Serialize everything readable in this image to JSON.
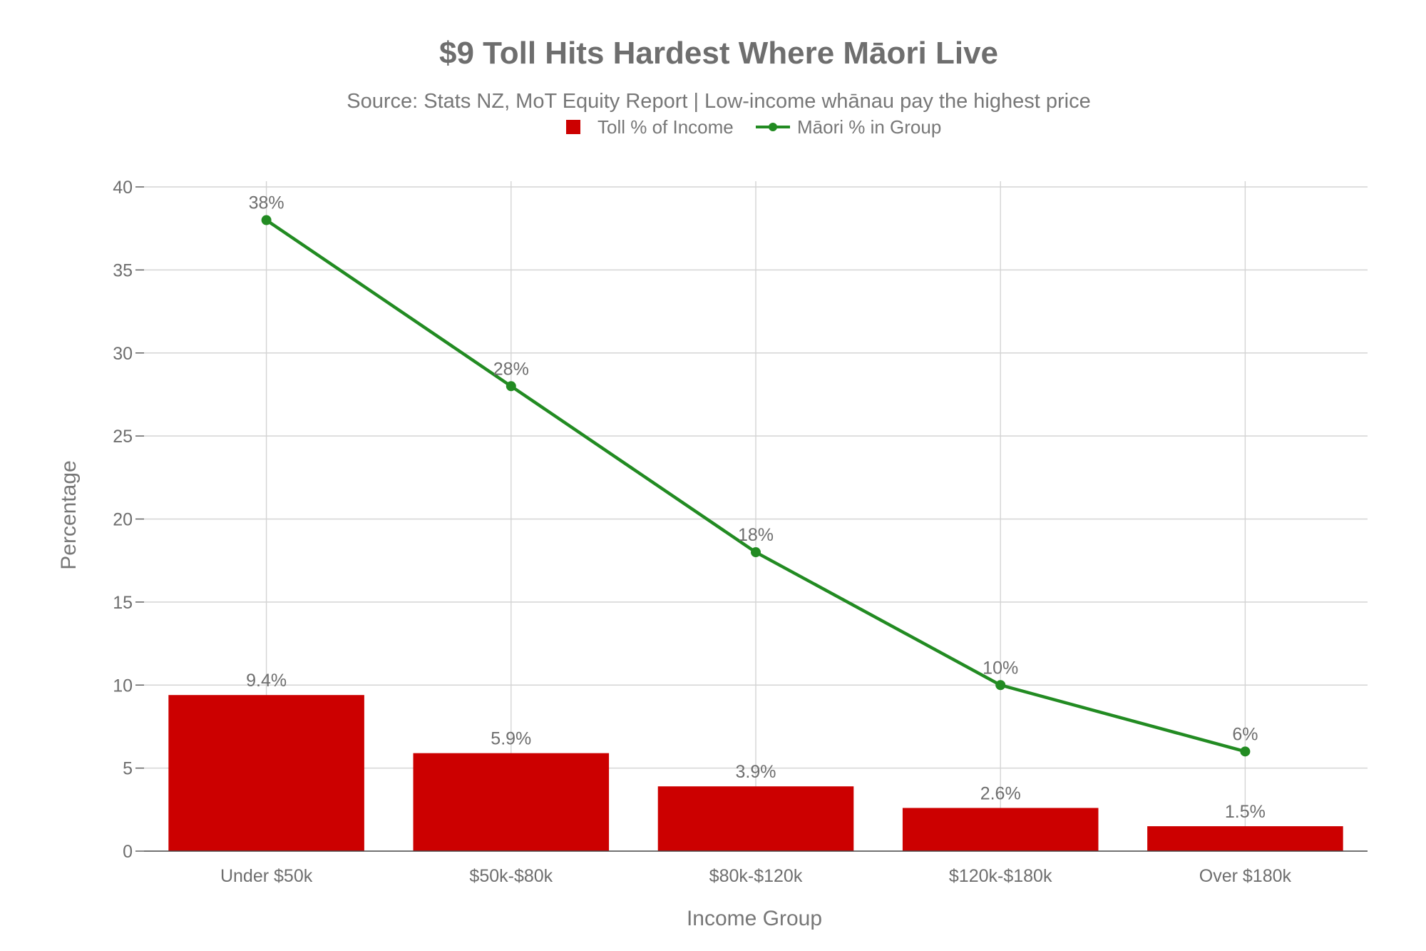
{
  "chart_data": {
    "type": "bar",
    "title": "$9 Toll Hits Hardest Where Māori Live",
    "subtitle": "Source: Stats NZ, MoT Equity Report | Low-income whānau pay the highest price",
    "xlabel": "Income Group",
    "ylabel": "Percentage",
    "ylim": [
      0,
      40
    ],
    "yticks": [
      0,
      5,
      10,
      15,
      20,
      25,
      30,
      35,
      40
    ],
    "grid": true,
    "legend_position": "top-center",
    "categories": [
      "Under $50k",
      "$50k-$80k",
      "$80k-$120k",
      "$120k-$180k",
      "Over $180k"
    ],
    "series": [
      {
        "name": "Toll % of Income",
        "type": "bar",
        "color": "#cc0000",
        "values": [
          9.4,
          5.9,
          3.9,
          2.6,
          1.5
        ],
        "labels": [
          "9.4%",
          "5.9%",
          "3.9%",
          "2.6%",
          "1.5%"
        ]
      },
      {
        "name": "Māori % in Group",
        "type": "line",
        "color": "#228b22",
        "values": [
          38,
          28,
          18,
          10,
          6
        ],
        "labels": [
          "38%",
          "28%",
          "18%",
          "10%",
          "6%"
        ]
      }
    ]
  }
}
